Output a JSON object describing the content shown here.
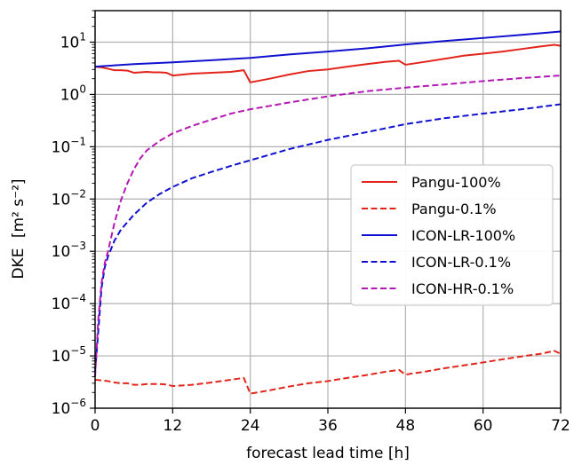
{
  "chart_data": {
    "type": "line",
    "title": "",
    "xlabel": "forecast lead time [h]",
    "ylabel": "DKE",
    "ylabel_units": "[m² s⁻²]",
    "xlim": [
      0,
      72
    ],
    "ylim": [
      1e-06,
      40
    ],
    "yscale": "log",
    "grid": true,
    "x_ticks": [
      0,
      12,
      24,
      36,
      48,
      60,
      72
    ],
    "x_tick_labels": [
      "0",
      "12",
      "24",
      "36",
      "48",
      "60",
      "72"
    ],
    "y_tick_exponents": [
      -6,
      -5,
      -4,
      -3,
      -2,
      -1,
      0,
      1
    ],
    "y_tick_base": "10",
    "legend_position": "center-right",
    "series": [
      {
        "name": "Pangu-100%",
        "color": "#e3241b",
        "dash": "solid",
        "x": [
          0,
          1,
          2,
          3,
          4,
          5,
          6,
          7,
          8,
          9,
          10,
          11,
          12,
          15,
          18,
          21,
          23,
          24,
          27,
          30,
          33,
          36,
          39,
          42,
          45,
          47,
          48,
          51,
          54,
          57,
          60,
          63,
          66,
          69,
          71,
          72
        ],
        "y": [
          3.4,
          3.3,
          3.1,
          2.9,
          2.9,
          2.85,
          2.6,
          2.65,
          2.7,
          2.65,
          2.65,
          2.6,
          2.3,
          2.5,
          2.6,
          2.7,
          2.9,
          1.7,
          2.0,
          2.4,
          2.8,
          3.0,
          3.4,
          3.8,
          4.2,
          4.4,
          3.7,
          4.2,
          4.8,
          5.5,
          6.0,
          6.6,
          7.4,
          8.3,
          8.9,
          8.5
        ]
      },
      {
        "name": "Pangu-0.1%",
        "color": "#e3241b",
        "dash": "dashed",
        "x": [
          0,
          1,
          2,
          3,
          4,
          5,
          6,
          7,
          8,
          9,
          10,
          11,
          12,
          15,
          18,
          21,
          23,
          24,
          27,
          30,
          33,
          36,
          39,
          42,
          45,
          47,
          48,
          51,
          54,
          57,
          60,
          63,
          66,
          69,
          71,
          72
        ],
        "y": [
          3.5e-06,
          3.4e-06,
          3.3e-06,
          3.1e-06,
          3e-06,
          3e-06,
          2.8e-06,
          2.8e-06,
          2.9e-06,
          2.9e-06,
          2.9e-06,
          2.85e-06,
          2.65e-06,
          2.8e-06,
          3.1e-06,
          3.5e-06,
          3.8e-06,
          1.9e-06,
          2.2e-06,
          2.6e-06,
          3e-06,
          3.3e-06,
          3.8e-06,
          4.3e-06,
          5e-06,
          5.4e-06,
          4.4e-06,
          5e-06,
          5.8e-06,
          6.6e-06,
          7.5e-06,
          8.6e-06,
          9.8e-06,
          1.1e-05,
          1.25e-05,
          1.1e-05
        ]
      },
      {
        "name": "ICON-LR-100%",
        "color": "#1010d0",
        "dash": "solid",
        "x": [
          0,
          6,
          12,
          18,
          24,
          30,
          36,
          42,
          48,
          54,
          60,
          66,
          72
        ],
        "y": [
          3.4,
          3.8,
          4.1,
          4.5,
          5.0,
          5.8,
          6.6,
          7.6,
          9.0,
          10.5,
          12.0,
          13.8,
          16.0
        ]
      },
      {
        "name": "ICON-LR-0.1%",
        "color": "#1010d0",
        "dash": "dashed",
        "x": [
          0,
          0.5,
          1,
          1.5,
          2,
          3,
          4,
          6,
          8,
          10,
          12,
          15,
          18,
          21,
          24,
          30,
          36,
          42,
          48,
          54,
          60,
          66,
          72
        ],
        "y": [
          5e-06,
          3e-05,
          0.0002,
          0.0005,
          0.0008,
          0.0016,
          0.0026,
          0.005,
          0.0085,
          0.0125,
          0.017,
          0.025,
          0.033,
          0.043,
          0.055,
          0.09,
          0.135,
          0.19,
          0.27,
          0.35,
          0.43,
          0.52,
          0.65
        ]
      },
      {
        "name": "ICON-HR-0.1%",
        "color": "#b418b4",
        "dash": "dashed",
        "x": [
          0,
          0.5,
          1,
          1.5,
          2,
          3,
          4,
          5,
          6,
          7,
          8,
          10,
          12,
          15,
          18,
          21,
          24,
          30,
          36,
          42,
          48,
          54,
          60,
          66,
          72
        ],
        "y": [
          4e-06,
          5e-05,
          0.00025,
          0.0006,
          0.001,
          0.0035,
          0.0095,
          0.02,
          0.037,
          0.06,
          0.085,
          0.13,
          0.18,
          0.25,
          0.33,
          0.43,
          0.52,
          0.7,
          0.92,
          1.15,
          1.35,
          1.55,
          1.8,
          2.05,
          2.3
        ]
      }
    ]
  }
}
